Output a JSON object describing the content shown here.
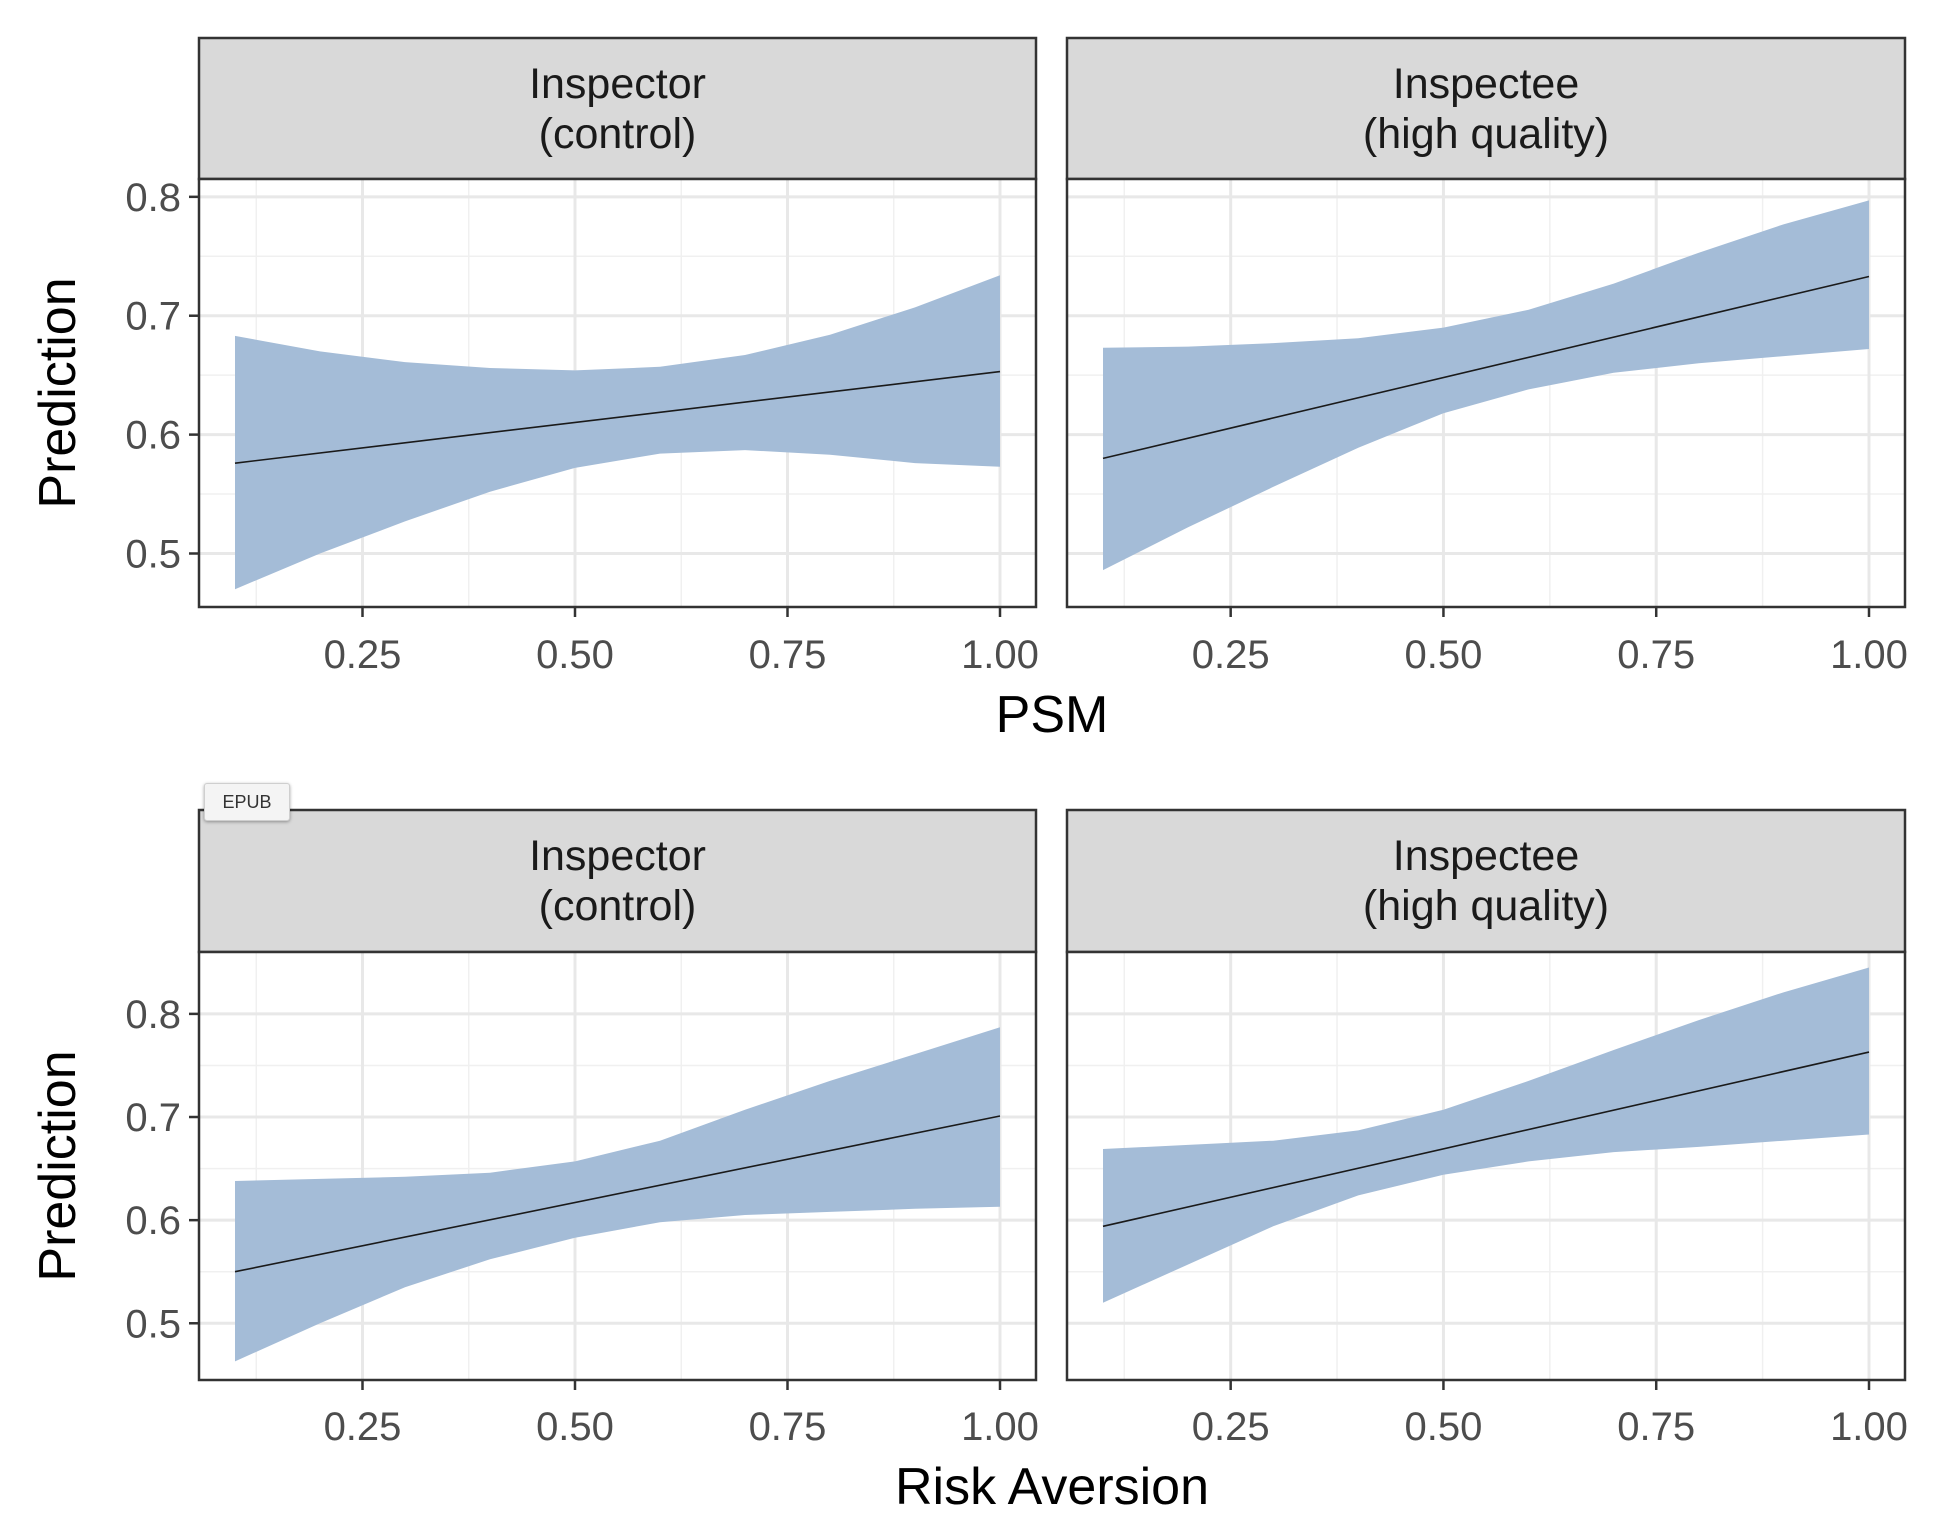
{
  "badge": {
    "label": "EPUB"
  },
  "chart_data": [
    {
      "type": "line",
      "xlabel": "PSM",
      "ylabel": "Prediction",
      "xlim": [
        0.1,
        1.0
      ],
      "ylim": [
        0.455,
        0.815
      ],
      "xticks": [
        0.25,
        0.5,
        0.75,
        1.0
      ],
      "xtick_labels": [
        "0.25",
        "0.50",
        "0.75",
        "1.00"
      ],
      "yticks": [
        0.5,
        0.6,
        0.7,
        0.8
      ],
      "ytick_labels": [
        "0.5",
        "0.6",
        "0.7",
        "0.8"
      ],
      "grid": true,
      "panels": [
        {
          "strip": [
            "Inspector",
            "(control)"
          ],
          "line": {
            "x": [
              0.1,
              1.0
            ],
            "y": [
              0.576,
              0.653
            ]
          },
          "ribbon": {
            "x": [
              0.1,
              0.2,
              0.3,
              0.4,
              0.5,
              0.6,
              0.7,
              0.8,
              0.9,
              1.0
            ],
            "lower": [
              0.47,
              0.5,
              0.527,
              0.552,
              0.572,
              0.584,
              0.587,
              0.583,
              0.576,
              0.573
            ],
            "upper": [
              0.683,
              0.67,
              0.661,
              0.656,
              0.654,
              0.657,
              0.667,
              0.684,
              0.707,
              0.734
            ]
          }
        },
        {
          "strip": [
            "Inspectee",
            "(high quality)"
          ],
          "line": {
            "x": [
              0.1,
              1.0
            ],
            "y": [
              0.58,
              0.733
            ]
          },
          "ribbon": {
            "x": [
              0.1,
              0.2,
              0.3,
              0.4,
              0.5,
              0.6,
              0.7,
              0.8,
              0.9,
              1.0
            ],
            "lower": [
              0.486,
              0.522,
              0.556,
              0.589,
              0.618,
              0.638,
              0.652,
              0.66,
              0.666,
              0.672
            ],
            "upper": [
              0.673,
              0.674,
              0.677,
              0.681,
              0.69,
              0.705,
              0.727,
              0.753,
              0.777,
              0.797
            ]
          }
        }
      ]
    },
    {
      "type": "line",
      "xlabel": "Risk Aversion",
      "ylabel": "Prediction",
      "xlim": [
        0.1,
        1.0
      ],
      "ylim": [
        0.445,
        0.86
      ],
      "xticks": [
        0.25,
        0.5,
        0.75,
        1.0
      ],
      "xtick_labels": [
        "0.25",
        "0.50",
        "0.75",
        "1.00"
      ],
      "yticks": [
        0.5,
        0.6,
        0.7,
        0.8
      ],
      "ytick_labels": [
        "0.5",
        "0.6",
        "0.7",
        "0.8"
      ],
      "grid": true,
      "panels": [
        {
          "strip": [
            "Inspector",
            "(control)"
          ],
          "line": {
            "x": [
              0.1,
              1.0
            ],
            "y": [
              0.55,
              0.701
            ]
          },
          "ribbon": {
            "x": [
              0.1,
              0.2,
              0.3,
              0.4,
              0.5,
              0.6,
              0.7,
              0.8,
              0.9,
              1.0
            ],
            "lower": [
              0.463,
              0.5,
              0.535,
              0.562,
              0.583,
              0.598,
              0.605,
              0.608,
              0.611,
              0.613
            ],
            "upper": [
              0.638,
              0.64,
              0.642,
              0.646,
              0.657,
              0.677,
              0.707,
              0.735,
              0.761,
              0.787
            ]
          }
        },
        {
          "strip": [
            "Inspectee",
            "(high quality)"
          ],
          "line": {
            "x": [
              0.1,
              1.0
            ],
            "y": [
              0.594,
              0.763
            ]
          },
          "ribbon": {
            "x": [
              0.1,
              0.2,
              0.3,
              0.4,
              0.5,
              0.6,
              0.7,
              0.8,
              0.9,
              1.0
            ],
            "lower": [
              0.52,
              0.557,
              0.594,
              0.624,
              0.644,
              0.657,
              0.666,
              0.671,
              0.677,
              0.683
            ],
            "upper": [
              0.669,
              0.673,
              0.677,
              0.687,
              0.707,
              0.735,
              0.765,
              0.794,
              0.821,
              0.845
            ]
          }
        }
      ]
    }
  ]
}
